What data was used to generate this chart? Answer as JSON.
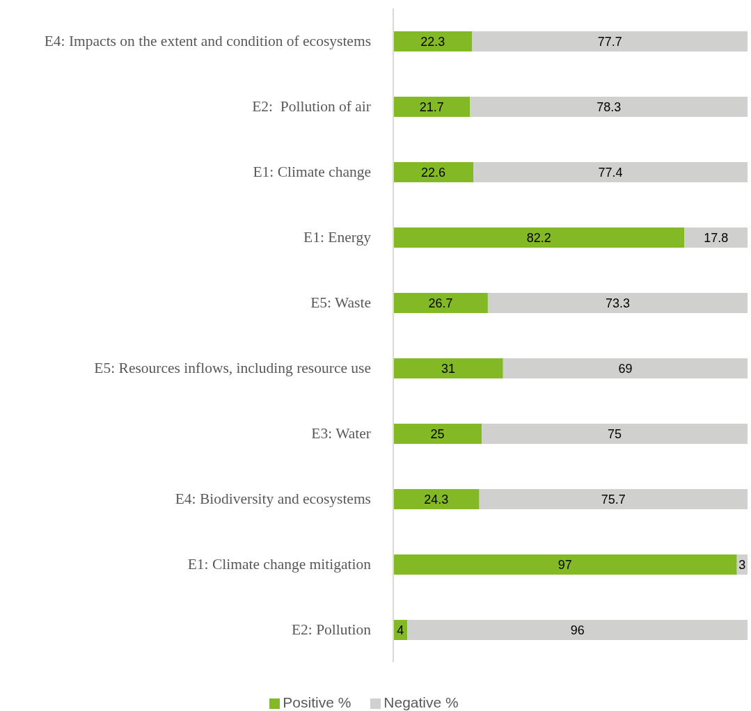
{
  "chart_data": {
    "type": "bar",
    "orientation": "horizontal",
    "stacked": true,
    "categories": [
      "E4: Impacts on the extent and condition of ecosystems",
      "E2:  Pollution of air",
      "E1: Climate change",
      "E1: Energy",
      "E5: Waste",
      "E5: Resources inflows, including resource use",
      "E3: Water",
      "E4: Biodiversity and ecosystems",
      "E1: Climate change mitigation",
      "E2: Pollution"
    ],
    "series": [
      {
        "name": "Positive %",
        "color": "#84b926",
        "values": [
          22.3,
          21.7,
          22.6,
          82.2,
          26.7,
          31,
          25,
          24.3,
          97,
          4
        ]
      },
      {
        "name": "Negative %",
        "color": "#d0d0cf",
        "values": [
          77.7,
          78.3,
          77.4,
          17.8,
          73.3,
          69,
          75,
          75.7,
          3,
          96
        ]
      }
    ],
    "xlim": [
      0,
      100
    ],
    "data_labels": true,
    "legend": "bottom",
    "tick_labels": "y"
  }
}
